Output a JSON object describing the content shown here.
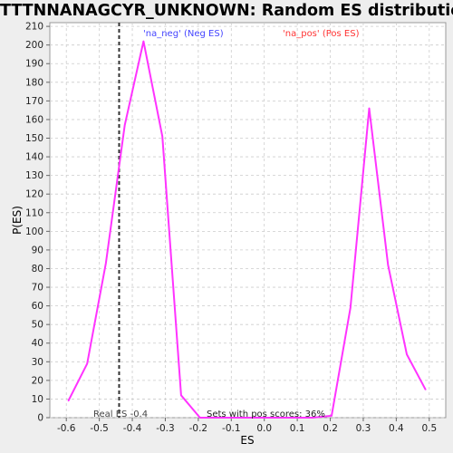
{
  "chart_data": {
    "type": "line",
    "title": "TTTNNANAGCYR_UNKNOWN: Random ES distribution",
    "xlabel": "ES",
    "ylabel": "P(ES)",
    "xlim": [
      -0.65,
      0.55
    ],
    "ylim": [
      0,
      212
    ],
    "xticks": [
      -0.6,
      -0.5,
      -0.4,
      -0.3,
      -0.2,
      -0.1,
      0.0,
      0.1,
      0.2,
      0.3,
      0.4,
      0.5
    ],
    "xtick_labels": [
      "-0.6",
      "-0.5",
      "-0.4",
      "-0.3",
      "-0.2",
      "-0.1",
      "0.0",
      "0.1",
      "0.2",
      "0.3",
      "0.4",
      "0.5"
    ],
    "yticks": [
      0,
      10,
      20,
      30,
      40,
      50,
      60,
      70,
      80,
      90,
      100,
      110,
      120,
      130,
      140,
      150,
      160,
      170,
      180,
      190,
      200,
      210
    ],
    "grid": true,
    "series": [
      {
        "color": "#ff33ff",
        "x": [
          -0.594,
          -0.537,
          -0.48,
          -0.423,
          -0.366,
          -0.309,
          -0.252,
          -0.195,
          -0.138,
          -0.081,
          -0.024,
          0.033,
          0.09,
          0.147,
          0.204,
          0.261,
          0.318,
          0.375,
          0.432,
          0.489
        ],
        "y": [
          9,
          29,
          83,
          157,
          202,
          151,
          12,
          0,
          0,
          0,
          0,
          0,
          0,
          0,
          1,
          59,
          166,
          82,
          34,
          15
        ]
      }
    ],
    "real_es": -0.44,
    "annotations": {
      "neg": "'na_neg' (Neg ES)",
      "pos": "'na_pos' (Pos ES)",
      "real": "Real ES -0.4",
      "sets": "Sets with pos scores: 36%"
    },
    "colors": {
      "neg": "#4444ff",
      "pos": "#ff3333",
      "real_line": "#333333",
      "grid": "#cccccc"
    }
  }
}
